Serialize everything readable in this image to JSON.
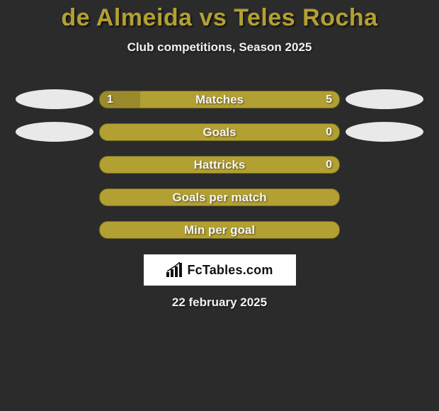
{
  "title": "de Almeida vs Teles Rocha",
  "subtitle": "Club competitions, Season 2025",
  "date": "22 february 2025",
  "colors": {
    "background": "#2b2b2b",
    "accent": "#b3a032",
    "accent_dark": "#9a8a2b",
    "ellipse": "#e9e9e9",
    "text": "#f2f2f2",
    "title_fontsize": 34,
    "subtitle_fontsize": 17,
    "bar_label_fontsize": 17
  },
  "rows": [
    {
      "label": "Matches",
      "left": "1",
      "right": "5",
      "fill_pct": 17,
      "show_ellipse_left": true,
      "show_ellipse_right": true
    },
    {
      "label": "Goals",
      "left": "",
      "right": "0",
      "fill_pct": 0,
      "show_ellipse_left": true,
      "show_ellipse_right": true
    },
    {
      "label": "Hattricks",
      "left": "",
      "right": "0",
      "fill_pct": 0,
      "show_ellipse_left": false,
      "show_ellipse_right": false
    },
    {
      "label": "Goals per match",
      "left": "",
      "right": "",
      "fill_pct": 0,
      "show_ellipse_left": false,
      "show_ellipse_right": false
    },
    {
      "label": "Min per goal",
      "left": "",
      "right": "",
      "fill_pct": 0,
      "show_ellipse_left": false,
      "show_ellipse_right": false
    }
  ],
  "logo": {
    "text_a": "Fc",
    "text_b": "Tables",
    "text_c": ".com"
  }
}
